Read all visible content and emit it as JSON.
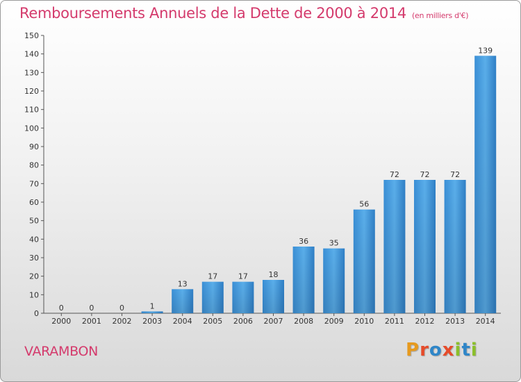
{
  "chart_data": {
    "type": "bar",
    "title": "Remboursements Annuels de la Dette de 2000 à 2014",
    "unit": "(en milliers d'€)",
    "categories": [
      "2000",
      "2001",
      "2002",
      "2003",
      "2004",
      "2005",
      "2006",
      "2007",
      "2008",
      "2009",
      "2010",
      "2011",
      "2012",
      "2013",
      "2014"
    ],
    "values": [
      0,
      0,
      0,
      1,
      13,
      17,
      17,
      18,
      36,
      35,
      56,
      72,
      72,
      72,
      139
    ],
    "xlabel": "",
    "ylabel": "",
    "ylim": [
      0,
      150
    ],
    "ytick_step": 10,
    "grid": false,
    "bar_color": "#4a9fe0"
  },
  "footer": {
    "commune": "VARAMBON"
  },
  "brand": {
    "letters": [
      {
        "char": "P",
        "color": "#e69a1f"
      },
      {
        "char": "r",
        "color": "#e64b2a"
      },
      {
        "char": "o",
        "color": "#2f86c8"
      },
      {
        "char": "x",
        "color": "#e64b2a"
      },
      {
        "char": "i",
        "color": "#8bbf2a"
      },
      {
        "char": "t",
        "color": "#2f86c8"
      },
      {
        "char": "i",
        "color": "#8bbf2a"
      }
    ]
  }
}
